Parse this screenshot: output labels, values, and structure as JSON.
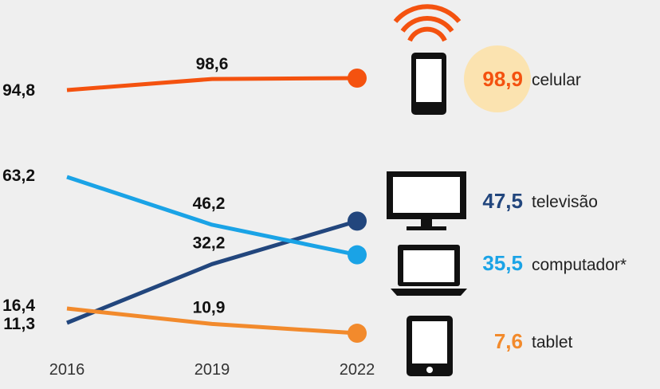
{
  "chart_data": {
    "type": "line",
    "x": [
      "2016",
      "2019",
      "2022"
    ],
    "series": [
      {
        "name": "celular",
        "values": [
          94.8,
          98.6,
          98.9
        ],
        "labels": [
          "94,8",
          "98,6",
          "98,9"
        ],
        "color": "#f4520f",
        "icon": "cellphone-wifi-icon",
        "badge_color": "#fbe3b0"
      },
      {
        "name": "televisão",
        "values": [
          11.3,
          32.2,
          47.5
        ],
        "labels": [
          "11,3",
          "32,2",
          "47,5"
        ],
        "color": "#22467d",
        "icon": "television-icon"
      },
      {
        "name": "computador*",
        "values": [
          63.2,
          46.2,
          35.5
        ],
        "labels": [
          "63,2",
          "46,2",
          "35,5"
        ],
        "color": "#1aa3e6",
        "icon": "laptop-icon"
      },
      {
        "name": "tablet",
        "values": [
          16.4,
          10.9,
          7.6
        ],
        "labels": [
          "16,4",
          "10,9",
          "7,6"
        ],
        "color": "#f28a2c",
        "icon": "tablet-icon"
      }
    ],
    "grid": false,
    "legend": "right"
  }
}
